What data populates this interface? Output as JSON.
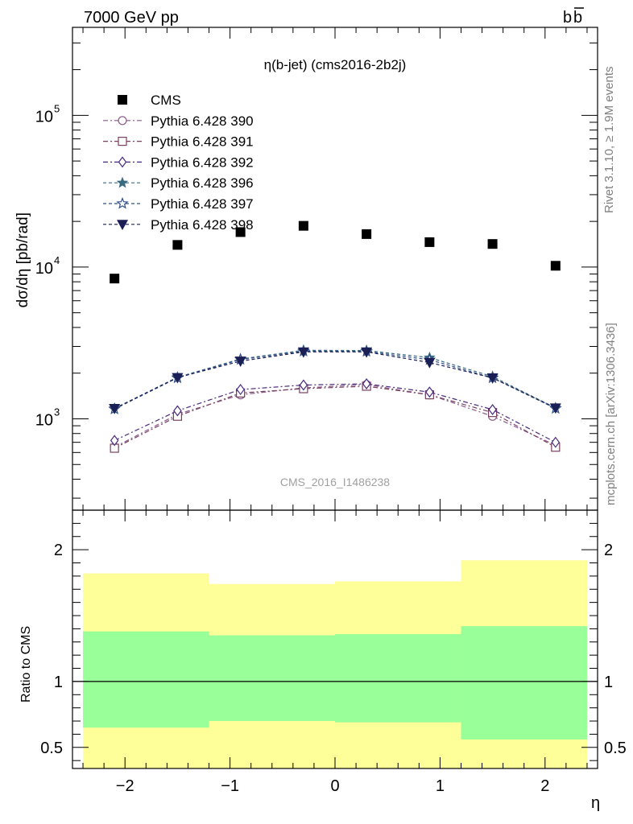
{
  "header": {
    "left": "7000 GeV pp",
    "right": "b",
    "right_bar": "b"
  },
  "side": {
    "top": "Rivet 3.1.10, ≥ 1.9M events",
    "bottom": "mcplots.cern.ch [arXiv:1306.3436]"
  },
  "chart_data": [
    {
      "type": "scatter",
      "title": "η(b-jet) (cms2016-2b2j)",
      "watermark": "CMS_2016_I1486238",
      "ylabel": "dσ/dη [pb/rad]",
      "xlabel": "",
      "yscale": "log",
      "ylim": [
        250,
        380000
      ],
      "xlim": [
        -2.5,
        2.5
      ],
      "x_ticks": [
        "−2",
        "−1",
        "0",
        "1",
        "2"
      ],
      "y_ticks": [
        "10",
        "10",
        "10"
      ],
      "y_tick_exponents": [
        "3",
        "4",
        "5"
      ],
      "x": [
        -2.1,
        -1.5,
        -0.9,
        -0.3,
        0.3,
        0.9,
        1.5,
        2.1
      ],
      "data": {
        "name": "CMS",
        "color": "#000000",
        "values": [
          8400,
          14000,
          17000,
          18700,
          16500,
          14600,
          14200,
          10200
        ]
      },
      "series": [
        {
          "name": "Pythia 6.428 390",
          "color": "#8a5a8a",
          "marker": "circle",
          "dash": "6,3,2,3",
          "values": [
            650,
            1070,
            1440,
            1600,
            1680,
            1440,
            1040,
            670
          ]
        },
        {
          "name": "Pythia 6.428 391",
          "color": "#7a4060",
          "marker": "square",
          "dash": "6,3,2,3",
          "values": [
            640,
            1040,
            1480,
            1580,
            1640,
            1440,
            1100,
            650
          ]
        },
        {
          "name": "Pythia 6.428 392",
          "color": "#4a2a80",
          "marker": "diamond",
          "dash": "6,3,2,3",
          "values": [
            720,
            1130,
            1560,
            1670,
            1700,
            1500,
            1150,
            700
          ]
        },
        {
          "name": "Pythia 6.428 396",
          "color": "#3a6a80",
          "marker": "star-filled",
          "dash": "4,3",
          "values": [
            1170,
            1880,
            2480,
            2830,
            2820,
            2530,
            1900,
            1180
          ]
        },
        {
          "name": "Pythia 6.428 397",
          "color": "#30508a",
          "marker": "star-open",
          "dash": "4,3",
          "values": [
            1160,
            1860,
            2460,
            2790,
            2780,
            2450,
            1860,
            1170
          ]
        },
        {
          "name": "Pythia 6.428 398",
          "color": "#1a1f55",
          "marker": "triangle-down",
          "dash": "4,3",
          "values": [
            1170,
            1870,
            2400,
            2760,
            2760,
            2350,
            1860,
            1180
          ]
        }
      ]
    },
    {
      "type": "area",
      "title": "",
      "xlabel": "η",
      "ylabel": "Ratio to CMS",
      "ylim": [
        0.34,
        2.3
      ],
      "xlim": [
        -2.5,
        2.5
      ],
      "x_ticks": [
        "−2",
        "−1",
        "0",
        "1",
        "2"
      ],
      "y_ticks": [
        "0.5",
        "1",
        "2"
      ],
      "bins": [
        [
          -2.4,
          -1.2
        ],
        [
          -1.2,
          0.0
        ],
        [
          0.0,
          1.2
        ],
        [
          1.2,
          2.4
        ]
      ],
      "band_inner": {
        "color": "#99ff99",
        "low": [
          0.65,
          0.7,
          0.69,
          0.56
        ],
        "high": [
          1.38,
          1.35,
          1.36,
          1.42
        ]
      },
      "band_outer": {
        "color": "#ffff99",
        "low": [
          0.34,
          0.34,
          0.34,
          0.34
        ],
        "high": [
          1.82,
          1.74,
          1.76,
          1.92
        ]
      },
      "reference": 1
    }
  ]
}
